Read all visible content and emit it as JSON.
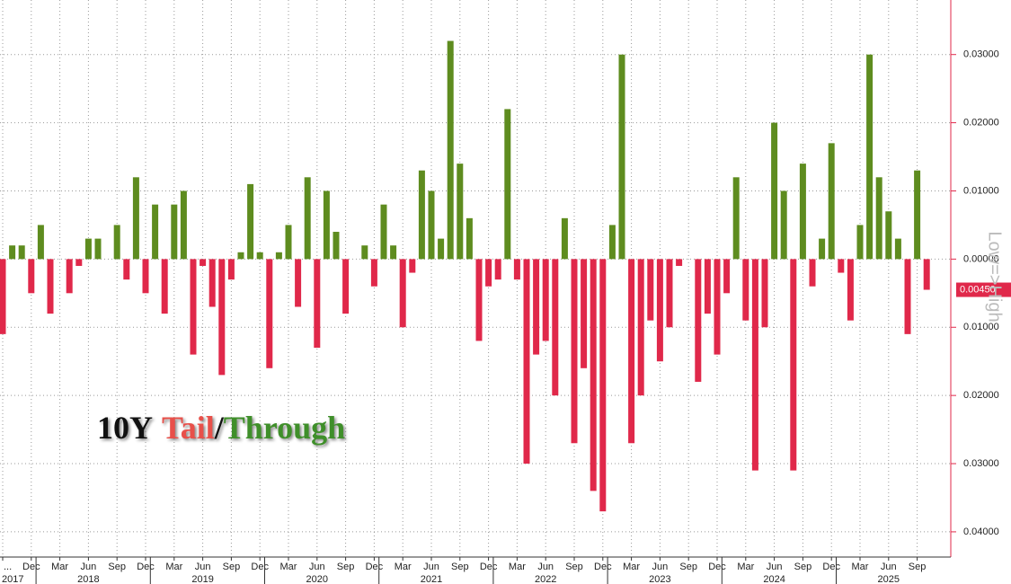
{
  "chart_data": {
    "type": "bar",
    "title_parts": [
      "10Y",
      "Tail",
      "/",
      "Through"
    ],
    "title_colors": [
      "#111111",
      "#e8504a",
      "#111111",
      "#3f8f2a"
    ],
    "axis_label": "Low=>High",
    "categories": [
      "...",
      null,
      null,
      "Dec",
      null,
      null,
      "Mar",
      null,
      null,
      "Jun",
      null,
      null,
      "Sep",
      null,
      null,
      "Dec",
      null,
      null,
      "Mar",
      null,
      null,
      "Jun",
      null,
      null,
      "Sep",
      null,
      null,
      "Dec",
      null,
      null,
      "Mar",
      null,
      null,
      "Jun",
      null,
      null,
      "Sep",
      null,
      null,
      "Dec",
      null,
      null,
      "Mar",
      null,
      null,
      "Jun",
      null,
      null,
      "Sep",
      null,
      null,
      "Dec",
      null,
      null,
      "Mar",
      null,
      null,
      "Jun",
      null,
      null,
      "Sep",
      null,
      null,
      "Dec",
      null,
      null,
      "Mar",
      null,
      null,
      "Jun",
      null,
      null,
      "Sep",
      null,
      null,
      "Dec",
      null,
      null,
      "Mar",
      null,
      null,
      "Jun",
      null,
      null,
      "Sep",
      null,
      null,
      "Dec",
      null,
      null,
      "Mar",
      null,
      null,
      "Jun",
      null,
      null,
      "Sep",
      null
    ],
    "years": [
      "2017",
      "2018",
      "2019",
      "2020",
      "2021",
      "2022",
      "2023",
      "2024",
      "2025"
    ],
    "values": [
      -0.011,
      0.002,
      0.002,
      -0.005,
      0.005,
      -0.008,
      0,
      -0.005,
      -0.001,
      0.003,
      0.003,
      0,
      0.005,
      -0.003,
      0.012,
      -0.005,
      0.008,
      -0.008,
      0.008,
      0.01,
      -0.014,
      -0.001,
      -0.007,
      -0.017,
      -0.003,
      0.001,
      0.011,
      0.001,
      -0.016,
      0.001,
      0.005,
      -0.007,
      0.012,
      -0.013,
      0.01,
      0.004,
      -0.008,
      0,
      0.002,
      -0.004,
      0.008,
      0.002,
      -0.01,
      -0.002,
      0.013,
      0.01,
      0.003,
      0.032,
      0.014,
      0.006,
      -0.012,
      -0.004,
      -0.003,
      0.022,
      -0.003,
      -0.03,
      -0.014,
      -0.012,
      -0.02,
      0.006,
      -0.027,
      -0.016,
      -0.034,
      -0.037,
      0.005,
      0.03,
      -0.027,
      -0.02,
      -0.009,
      -0.015,
      -0.01,
      -0.001,
      0,
      -0.018,
      -0.008,
      -0.014,
      -0.005,
      0.012,
      -0.009,
      -0.031,
      -0.01,
      0.02,
      0.01,
      -0.031,
      0.014,
      -0.004,
      0.003,
      0.017,
      -0.002,
      -0.009,
      0.005,
      0.03,
      0.012,
      0.007,
      0.003,
      -0.011,
      0.013,
      -0.0045
    ],
    "last_value_label": "0.00450",
    "colors": {
      "positive": "#5e8c1f",
      "negative": "#e0284a"
    },
    "ylim": [
      -0.0437,
      0.038
    ],
    "yticks": [
      {
        "value": 0.03,
        "label": "0.03000"
      },
      {
        "value": 0.02,
        "label": "0.02000"
      },
      {
        "value": 0.01,
        "label": "0.01000"
      },
      {
        "value": 0,
        "label": "0.00000"
      },
      {
        "value": -0.01,
        "label": "0.01000"
      },
      {
        "value": -0.02,
        "label": "0.02000"
      },
      {
        "value": -0.03,
        "label": "0.03000"
      },
      {
        "value": -0.04,
        "label": "0.04000"
      }
    ],
    "grid": true
  }
}
